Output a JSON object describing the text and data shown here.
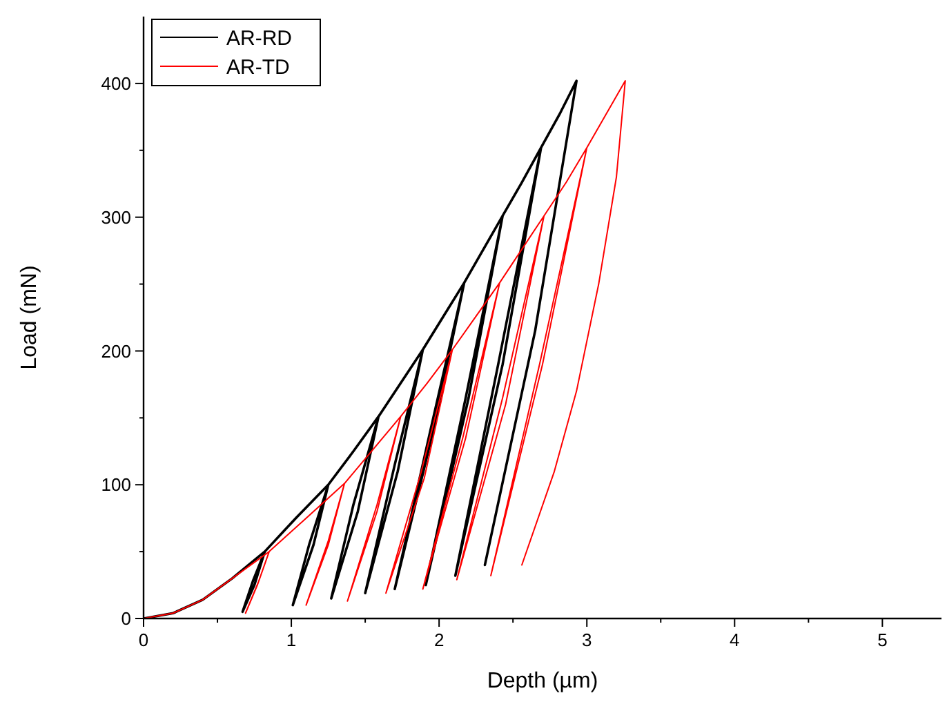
{
  "chart_data": {
    "type": "line",
    "xlabel": "Depth (µm)",
    "ylabel": "Load (mN)",
    "xlim": [
      0,
      5.4
    ],
    "ylim": [
      0,
      450
    ],
    "xticks": [
      0,
      {
        "value": 0.5,
        "label": null
      },
      1,
      {
        "value": 1.5,
        "label": null
      },
      2,
      {
        "value": 2.5,
        "label": null
      },
      3,
      {
        "value": 3.5,
        "label": null
      },
      4,
      {
        "value": 4.5,
        "label": null
      },
      5
    ],
    "yticks": [
      0,
      {
        "value": 50,
        "label": null
      },
      100,
      {
        "value": 150,
        "label": null
      },
      200,
      {
        "value": 250,
        "label": null
      },
      300,
      {
        "value": 350,
        "label": null
      },
      400
    ],
    "grid": false,
    "legend": "top left",
    "marker": "none",
    "line_style": "solid",
    "series": [
      {
        "name": "AR-RD",
        "color": "#000000",
        "x": [
          0,
          0.2,
          0.4,
          0.6,
          0.82,
          0.75,
          0.67,
          0.74,
          0.82,
          1.03,
          1.25,
          1.15,
          1.01,
          1.12,
          1.25,
          1.42,
          1.59,
          1.45,
          1.27,
          1.42,
          1.59,
          1.74,
          1.89,
          1.72,
          1.5,
          1.7,
          1.89,
          2.03,
          2.17,
          1.96,
          1.7,
          1.94,
          2.17,
          2.3,
          2.43,
          2.2,
          1.91,
          2.18,
          2.43,
          2.56,
          2.69,
          2.43,
          2.11,
          2.4,
          2.69,
          2.82,
          2.93,
          2.65,
          2.31
        ],
        "values": [
          0,
          4,
          14,
          30,
          50,
          25,
          5,
          28,
          50,
          75,
          100,
          55,
          10,
          55,
          100,
          125,
          151,
          80,
          15,
          85,
          151,
          176,
          201,
          110,
          19,
          115,
          201,
          226,
          251,
          140,
          22,
          140,
          251,
          276,
          301,
          165,
          25,
          165,
          301,
          326,
          352,
          190,
          32,
          190,
          352,
          378,
          402,
          215,
          40
        ]
      },
      {
        "name": "AR-TD",
        "color": "#ff0000",
        "x": [
          0,
          0.2,
          0.4,
          0.6,
          0.85,
          0.77,
          0.69,
          0.78,
          0.85,
          1.1,
          1.36,
          1.25,
          1.1,
          1.25,
          1.36,
          1.55,
          1.74,
          1.58,
          1.38,
          1.58,
          1.74,
          1.92,
          2.09,
          1.9,
          1.64,
          1.88,
          2.09,
          2.25,
          2.41,
          2.18,
          1.89,
          2.16,
          2.41,
          2.56,
          2.71,
          2.45,
          2.12,
          2.43,
          2.71,
          2.86,
          3.0,
          2.7,
          2.35,
          2.68,
          3.0,
          3.13,
          3.26,
          3.2,
          3.08,
          2.93,
          2.78,
          2.56
        ],
        "values": [
          0,
          4,
          14,
          30,
          50,
          25,
          4,
          28,
          50,
          75,
          101,
          55,
          10,
          58,
          101,
          126,
          151,
          80,
          13,
          85,
          151,
          176,
          201,
          105,
          19,
          110,
          201,
          226,
          251,
          135,
          22,
          135,
          251,
          276,
          301,
          160,
          29,
          165,
          301,
          326,
          352,
          190,
          32,
          190,
          352,
          377,
          402,
          330,
          250,
          170,
          110,
          40
        ]
      }
    ]
  }
}
